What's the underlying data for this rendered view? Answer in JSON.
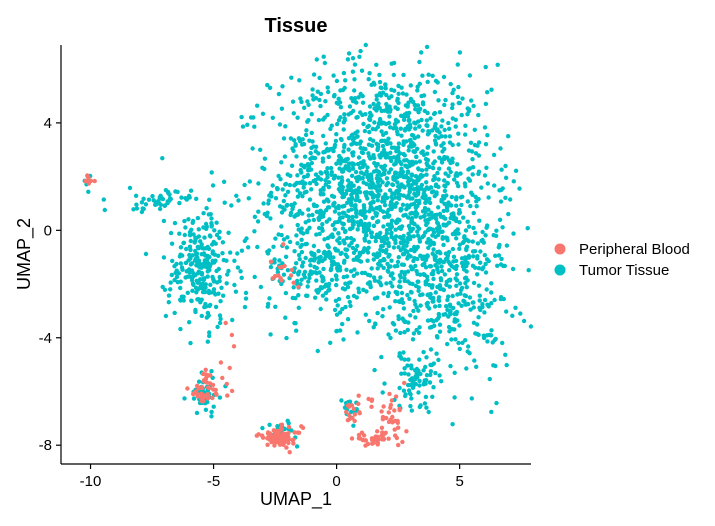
{
  "chart_data": {
    "type": "scatter",
    "title": "Tissue",
    "xlabel": "UMAP_1",
    "ylabel": "UMAP_2",
    "xlim": [
      -11.2,
      7.9
    ],
    "ylim": [
      -8.7,
      6.9
    ],
    "xticks": [
      -10,
      -5,
      0,
      5
    ],
    "yticks": [
      -8,
      -4,
      0,
      4
    ],
    "grid": false,
    "legend_position": "right",
    "series": [
      {
        "name": "Peripheral Blood",
        "color": "#F8766D",
        "clusters": [
          {
            "cx": -10.1,
            "cy": 1.9,
            "sx": 0.12,
            "sy": 0.12,
            "n": 8
          },
          {
            "cx": -2.3,
            "cy": -1.8,
            "sx": 0.45,
            "sy": 0.5,
            "n": 14
          },
          {
            "cx": -5.3,
            "cy": -5.9,
            "sx": 0.35,
            "sy": 0.35,
            "n": 45
          },
          {
            "cx": -2.3,
            "cy": -7.7,
            "sx": 0.45,
            "sy": 0.18,
            "n": 70
          },
          {
            "cx": 1.5,
            "cy": -7.75,
            "sx": 0.4,
            "sy": 0.1,
            "n": 35
          },
          {
            "cx": 2.2,
            "cy": -7.1,
            "sx": 0.3,
            "sy": 0.5,
            "n": 30
          },
          {
            "cx": 0.5,
            "cy": -6.8,
            "sx": 0.15,
            "sy": 0.15,
            "n": 12
          },
          {
            "cx": -4.2,
            "cy": -4.3,
            "sx": 0.2,
            "sy": 0.6,
            "n": 6
          },
          {
            "cx": 1.5,
            "cy": -6.5,
            "sx": 0.5,
            "sy": 0.3,
            "n": 10
          }
        ]
      },
      {
        "name": "Tumor Tissue",
        "color": "#00BFC4",
        "clusters": [
          {
            "cx": 1.8,
            "cy": 1.6,
            "sx": 2.2,
            "sy": 2.3,
            "n": 1700
          },
          {
            "cx": 4.6,
            "cy": -2.0,
            "sx": 1.3,
            "sy": 1.8,
            "n": 380
          },
          {
            "cx": -1.0,
            "cy": -1.5,
            "sx": 1.0,
            "sy": 0.6,
            "n": 120
          },
          {
            "cx": -5.5,
            "cy": -1.4,
            "sx": 0.7,
            "sy": 1.1,
            "n": 260
          },
          {
            "cx": -7.3,
            "cy": 1.1,
            "sx": 0.7,
            "sy": 0.2,
            "n": 50
          },
          {
            "cx": -10.1,
            "cy": 1.8,
            "sx": 0.1,
            "sy": 0.15,
            "n": 6
          },
          {
            "cx": -5.3,
            "cy": -6.1,
            "sx": 0.35,
            "sy": 0.4,
            "n": 40
          },
          {
            "cx": -2.4,
            "cy": -7.5,
            "sx": 0.4,
            "sy": 0.2,
            "n": 25
          },
          {
            "cx": 0.5,
            "cy": -6.6,
            "sx": 0.15,
            "sy": 0.15,
            "n": 15
          },
          {
            "cx": 3.2,
            "cy": -5.6,
            "sx": 0.6,
            "sy": 0.5,
            "n": 60
          }
        ]
      }
    ]
  }
}
